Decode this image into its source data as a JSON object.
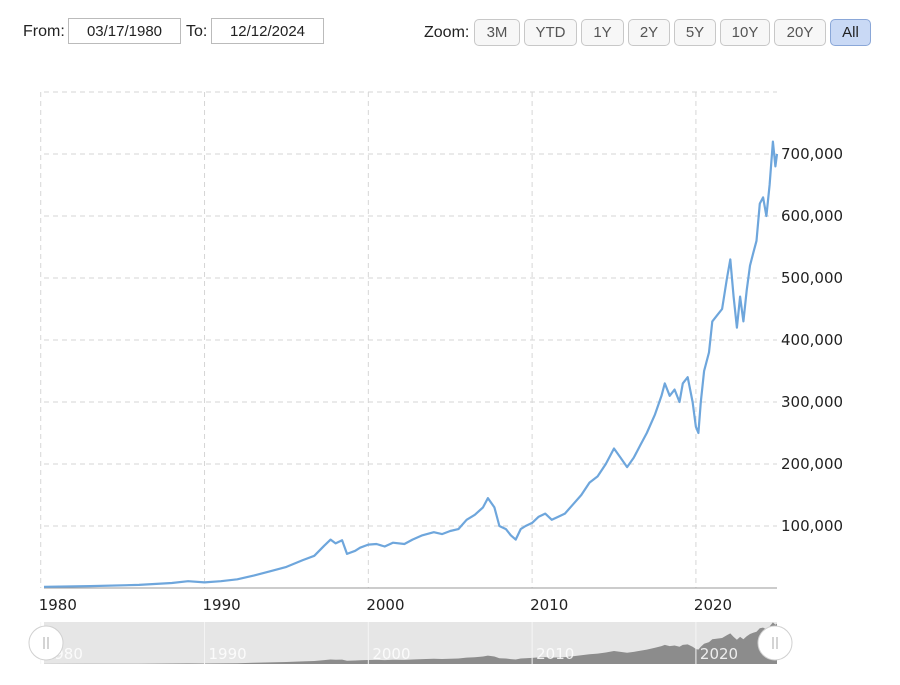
{
  "range_selector": {
    "from_label": "From:",
    "from_value": "03/17/1980",
    "to_label": "To:",
    "to_value": "12/12/2024",
    "zoom_label": "Zoom:",
    "zoom_options": [
      "3M",
      "YTD",
      "1Y",
      "2Y",
      "5Y",
      "10Y",
      "20Y",
      "All"
    ],
    "active_zoom": "All"
  },
  "chart_data": {
    "type": "line",
    "title": "",
    "xlabel": "",
    "ylabel": "",
    "x_ticks": [
      "1980",
      "1990",
      "2000",
      "2010",
      "2020"
    ],
    "y_ticks": [
      "100,000",
      "200,000",
      "300,000",
      "400,000",
      "500,000",
      "600,000",
      "700,000"
    ],
    "xlim": [
      1980.2,
      2024.95
    ],
    "ylim": [
      0,
      800000
    ],
    "grid": true,
    "line_color": "#6ea6dc",
    "series": [
      {
        "x": [
          1980.2,
          1983.0,
          1986.0,
          1988.0,
          1989.0,
          1990.0,
          1991.0,
          1992.0,
          1993.0,
          1994.0,
          1995.0,
          1996.0,
          1996.7,
          1997.3,
          1997.7,
          1998.0,
          1998.4,
          1998.7,
          1999.2,
          1999.5,
          2000.0,
          2000.5,
          2001.0,
          2001.5,
          2002.2,
          2002.7,
          2003.3,
          2004.0,
          2004.5,
          2005.0,
          2005.5,
          2006.0,
          2006.5,
          2007.0,
          2007.3,
          2007.7,
          2008.0,
          2008.4,
          2008.7,
          2009.0,
          2009.3,
          2009.6,
          2010.0,
          2010.4,
          2010.8,
          2011.2,
          2011.6,
          2012.0,
          2012.5,
          2013.0,
          2013.5,
          2014.0,
          2014.5,
          2015.0,
          2015.4,
          2015.8,
          2016.2,
          2016.6,
          2017.0,
          2017.5,
          2017.9,
          2018.1,
          2018.4,
          2018.7,
          2019.0,
          2019.2,
          2019.5,
          2019.8,
          2020.0,
          2020.15,
          2020.3,
          2020.5,
          2020.8,
          2021.0,
          2021.3,
          2021.6,
          2021.9,
          2022.1,
          2022.3,
          2022.5,
          2022.7,
          2022.9,
          2023.1,
          2023.3,
          2023.5,
          2023.7,
          2023.9,
          2024.1,
          2024.3,
          2024.5,
          2024.7,
          2024.85,
          2024.95
        ],
        "y": [
          2000,
          3000,
          5000,
          8000,
          11000,
          9000,
          11000,
          14000,
          20000,
          27000,
          34000,
          45000,
          52000,
          68000,
          78000,
          72000,
          77000,
          55000,
          60000,
          65000,
          70000,
          71000,
          67000,
          73000,
          71000,
          78000,
          85000,
          90000,
          87000,
          92000,
          95000,
          110000,
          118000,
          130000,
          145000,
          130000,
          100000,
          95000,
          85000,
          78000,
          95000,
          100000,
          105000,
          115000,
          120000,
          110000,
          115000,
          120000,
          135000,
          150000,
          170000,
          180000,
          200000,
          225000,
          210000,
          195000,
          210000,
          230000,
          250000,
          280000,
          310000,
          330000,
          310000,
          320000,
          300000,
          330000,
          340000,
          300000,
          260000,
          250000,
          300000,
          350000,
          380000,
          430000,
          440000,
          450000,
          500000,
          530000,
          470000,
          420000,
          470000,
          430000,
          480000,
          520000,
          540000,
          560000,
          620000,
          630000,
          600000,
          650000,
          720000,
          680000,
          700000
        ]
      }
    ],
    "navigator": {
      "x_ticks": [
        "1980",
        "1990",
        "2000",
        "2010",
        "2020"
      ]
    }
  }
}
